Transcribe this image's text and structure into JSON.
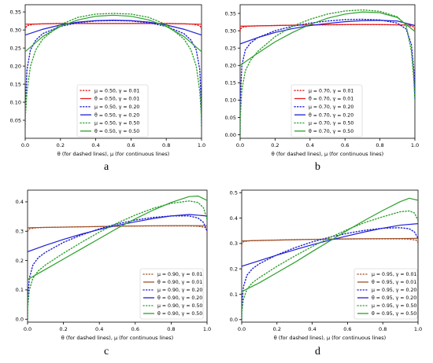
{
  "figure_labels": [
    "a",
    "b",
    "c",
    "d"
  ],
  "chart_data": [
    {
      "type": "line",
      "panel_label": "a",
      "xlabel": "θ (for dashed lines), μ (for continuous lines)",
      "ylabel": "",
      "xlim": [
        0,
        1
      ],
      "ylim": [
        0,
        0.37
      ],
      "xticks": [
        "0.0",
        "0.2",
        "0.4",
        "0.6",
        "0.8",
        "1.0"
      ],
      "yticks": [
        "0.05",
        "0.10",
        "0.15",
        "0.20",
        "0.25",
        "0.30",
        "0.35"
      ],
      "legend_position": "bottom-center",
      "series": [
        {
          "name": "μ = 0.50, γ = 0.01",
          "style": "dotted",
          "color": "#e41a1c",
          "x": [
            0,
            0.001,
            0.01,
            0.05,
            0.1,
            0.2,
            0.3,
            0.4,
            0.5,
            0.6,
            0.7,
            0.8,
            0.9,
            0.95,
            0.99,
            0.999,
            1
          ],
          "y": [
            0.3,
            0.305,
            0.312,
            0.316,
            0.317,
            0.318,
            0.318,
            0.318,
            0.318,
            0.318,
            0.318,
            0.318,
            0.317,
            0.316,
            0.312,
            0.305,
            0.3
          ]
        },
        {
          "name": "θ = 0.50, γ = 0.01",
          "style": "solid",
          "color": "#e41a1c",
          "x": [
            0,
            0.1,
            0.2,
            0.3,
            0.4,
            0.5,
            0.6,
            0.7,
            0.8,
            0.9,
            1
          ],
          "y": [
            0.316,
            0.317,
            0.318,
            0.318,
            0.318,
            0.318,
            0.318,
            0.318,
            0.318,
            0.317,
            0.316
          ]
        },
        {
          "name": "μ = 0.50, γ = 0.20",
          "style": "dotted",
          "color": "#1f1fd4",
          "x": [
            0,
            0.001,
            0.01,
            0.03,
            0.06,
            0.1,
            0.2,
            0.3,
            0.4,
            0.5,
            0.6,
            0.7,
            0.8,
            0.9,
            0.94,
            0.97,
            0.99,
            0.999,
            1
          ],
          "y": [
            0.03,
            0.09,
            0.19,
            0.245,
            0.272,
            0.29,
            0.31,
            0.32,
            0.325,
            0.326,
            0.325,
            0.32,
            0.31,
            0.29,
            0.272,
            0.245,
            0.19,
            0.09,
            0.03
          ]
        },
        {
          "name": "θ = 0.50, γ = 0.20",
          "style": "solid",
          "color": "#1f1fd4",
          "x": [
            0,
            0.1,
            0.2,
            0.3,
            0.4,
            0.5,
            0.6,
            0.7,
            0.8,
            0.9,
            1
          ],
          "y": [
            0.286,
            0.302,
            0.314,
            0.322,
            0.326,
            0.327,
            0.326,
            0.322,
            0.314,
            0.302,
            0.286
          ]
        },
        {
          "name": "μ = 0.50, γ = 0.50",
          "style": "dotted",
          "color": "#2ca02c",
          "x": [
            0,
            0.001,
            0.01,
            0.03,
            0.06,
            0.1,
            0.2,
            0.3,
            0.4,
            0.5,
            0.6,
            0.7,
            0.8,
            0.9,
            0.94,
            0.97,
            0.99,
            0.999,
            1
          ],
          "y": [
            0.03,
            0.06,
            0.13,
            0.2,
            0.245,
            0.275,
            0.315,
            0.335,
            0.344,
            0.346,
            0.344,
            0.335,
            0.315,
            0.275,
            0.245,
            0.2,
            0.13,
            0.06,
            0.03
          ]
        },
        {
          "name": "θ = 0.50, γ = 0.50",
          "style": "solid",
          "color": "#2ca02c",
          "x": [
            0,
            0.1,
            0.2,
            0.3,
            0.4,
            0.5,
            0.6,
            0.7,
            0.8,
            0.9,
            1
          ],
          "y": [
            0.24,
            0.282,
            0.31,
            0.328,
            0.338,
            0.341,
            0.338,
            0.328,
            0.31,
            0.282,
            0.24
          ]
        }
      ]
    },
    {
      "type": "line",
      "panel_label": "b",
      "xlabel": "θ (for dashed lines), μ (for continuous lines)",
      "ylabel": "",
      "xlim": [
        0,
        1
      ],
      "ylim": [
        -0.01,
        0.375
      ],
      "xticks": [
        "0.0",
        "0.2",
        "0.4",
        "0.6",
        "0.8",
        "1.0"
      ],
      "yticks": [
        "0.00",
        "0.05",
        "0.10",
        "0.15",
        "0.20",
        "0.25",
        "0.30",
        "0.35"
      ],
      "legend_position": "bottom-center",
      "series": [
        {
          "name": "μ = 0.70, γ = 0.01",
          "style": "dotted",
          "color": "#e41a1c",
          "x": [
            0,
            0.001,
            0.01,
            0.05,
            0.1,
            0.3,
            0.5,
            0.7,
            0.9,
            0.95,
            0.99,
            0.999,
            1
          ],
          "y": [
            0.298,
            0.304,
            0.31,
            0.313,
            0.314,
            0.316,
            0.317,
            0.318,
            0.317,
            0.316,
            0.312,
            0.305,
            0.3
          ]
        },
        {
          "name": "θ = 0.70, γ = 0.01",
          "style": "solid",
          "color": "#e41a1c",
          "x": [
            0,
            0.2,
            0.4,
            0.6,
            0.8,
            1
          ],
          "y": [
            0.313,
            0.315,
            0.317,
            0.318,
            0.318,
            0.316
          ]
        },
        {
          "name": "μ = 0.70, γ = 0.20",
          "style": "dotted",
          "color": "#1f1fd4",
          "x": [
            0,
            0.001,
            0.01,
            0.03,
            0.06,
            0.1,
            0.2,
            0.3,
            0.4,
            0.5,
            0.6,
            0.7,
            0.8,
            0.9,
            0.95,
            0.98,
            0.995,
            1
          ],
          "y": [
            0.0,
            0.1,
            0.2,
            0.245,
            0.265,
            0.28,
            0.3,
            0.313,
            0.322,
            0.328,
            0.332,
            0.333,
            0.331,
            0.322,
            0.305,
            0.26,
            0.18,
            0.1
          ]
        },
        {
          "name": "θ = 0.70, γ = 0.20",
          "style": "solid",
          "color": "#1f1fd4",
          "x": [
            0,
            0.1,
            0.2,
            0.3,
            0.4,
            0.5,
            0.6,
            0.7,
            0.8,
            0.9,
            1
          ],
          "y": [
            0.262,
            0.28,
            0.295,
            0.306,
            0.315,
            0.321,
            0.326,
            0.329,
            0.33,
            0.328,
            0.315
          ]
        },
        {
          "name": "μ = 0.70, γ = 0.50",
          "style": "dotted",
          "color": "#2ca02c",
          "x": [
            0,
            0.001,
            0.01,
            0.03,
            0.06,
            0.1,
            0.2,
            0.3,
            0.4,
            0.5,
            0.6,
            0.7,
            0.8,
            0.9,
            0.95,
            0.98,
            0.995,
            1
          ],
          "y": [
            0.0,
            0.05,
            0.13,
            0.185,
            0.215,
            0.24,
            0.283,
            0.313,
            0.333,
            0.348,
            0.357,
            0.36,
            0.356,
            0.34,
            0.315,
            0.24,
            0.15,
            0.1
          ]
        },
        {
          "name": "θ = 0.70, γ = 0.50",
          "style": "solid",
          "color": "#2ca02c",
          "x": [
            0,
            0.1,
            0.2,
            0.3,
            0.4,
            0.5,
            0.6,
            0.7,
            0.8,
            0.9,
            1
          ],
          "y": [
            0.2,
            0.235,
            0.268,
            0.295,
            0.318,
            0.336,
            0.348,
            0.354,
            0.352,
            0.338,
            0.298
          ]
        }
      ]
    },
    {
      "type": "line",
      "panel_label": "c",
      "xlabel": "θ (for dashed lines), μ (for continuous lines)",
      "ylabel": "",
      "xlim": [
        0,
        1
      ],
      "ylim": [
        -0.01,
        0.44
      ],
      "xticks": [
        "0.0",
        "0.2",
        "0.4",
        "0.6",
        "0.8",
        "1.0"
      ],
      "yticks": [
        "0.0",
        "0.1",
        "0.2",
        "0.3",
        "0.4"
      ],
      "legend_position": "bottom-right",
      "series": [
        {
          "name": "μ = 0.90, γ = 0.01",
          "style": "dotted",
          "color": "#a0522d",
          "x": [
            0,
            0.001,
            0.01,
            0.05,
            0.1,
            0.3,
            0.5,
            0.7,
            0.9,
            0.95,
            0.99,
            0.999,
            1
          ],
          "y": [
            0.29,
            0.3,
            0.308,
            0.312,
            0.313,
            0.315,
            0.317,
            0.318,
            0.318,
            0.317,
            0.313,
            0.305,
            0.295
          ]
        },
        {
          "name": "θ = 0.90, γ = 0.01",
          "style": "solid",
          "color": "#a0522d",
          "x": [
            0,
            0.2,
            0.4,
            0.6,
            0.8,
            1
          ],
          "y": [
            0.312,
            0.314,
            0.316,
            0.318,
            0.319,
            0.319
          ]
        },
        {
          "name": "μ = 0.90, γ = 0.20",
          "style": "dotted",
          "color": "#1f1fd4",
          "x": [
            0,
            0.001,
            0.01,
            0.03,
            0.06,
            0.1,
            0.2,
            0.3,
            0.4,
            0.5,
            0.6,
            0.7,
            0.8,
            0.9,
            0.95,
            0.98,
            1
          ],
          "y": [
            0.0,
            0.07,
            0.14,
            0.185,
            0.21,
            0.228,
            0.262,
            0.287,
            0.308,
            0.325,
            0.338,
            0.347,
            0.352,
            0.352,
            0.345,
            0.33,
            0.3
          ]
        },
        {
          "name": "θ = 0.90, γ = 0.20",
          "style": "solid",
          "color": "#1f1fd4",
          "x": [
            0,
            0.1,
            0.2,
            0.3,
            0.4,
            0.5,
            0.6,
            0.7,
            0.8,
            0.9,
            1
          ],
          "y": [
            0.23,
            0.252,
            0.272,
            0.29,
            0.306,
            0.32,
            0.332,
            0.343,
            0.352,
            0.357,
            0.352
          ]
        },
        {
          "name": "μ = 0.90, γ = 0.50",
          "style": "dotted",
          "color": "#2ca02c",
          "x": [
            0,
            0.001,
            0.01,
            0.03,
            0.06,
            0.1,
            0.2,
            0.3,
            0.4,
            0.5,
            0.6,
            0.7,
            0.8,
            0.9,
            0.95,
            0.98,
            1
          ],
          "y": [
            0.0,
            0.04,
            0.1,
            0.14,
            0.165,
            0.185,
            0.225,
            0.262,
            0.297,
            0.328,
            0.355,
            0.378,
            0.395,
            0.403,
            0.398,
            0.38,
            0.34
          ]
        },
        {
          "name": "θ = 0.90, γ = 0.50",
          "style": "solid",
          "color": "#2ca02c",
          "x": [
            0,
            0.1,
            0.2,
            0.3,
            0.4,
            0.5,
            0.6,
            0.7,
            0.8,
            0.9,
            0.95,
            1
          ],
          "y": [
            0.135,
            0.17,
            0.205,
            0.24,
            0.275,
            0.31,
            0.342,
            0.372,
            0.398,
            0.418,
            0.42,
            0.405
          ]
        }
      ]
    },
    {
      "type": "line",
      "panel_label": "d",
      "xlabel": "θ (for dashed lines), μ (for continuous lines)",
      "ylabel": "",
      "xlim": [
        0,
        1
      ],
      "ylim": [
        -0.01,
        0.51
      ],
      "xticks": [
        "0.0",
        "0.2",
        "0.4",
        "0.6",
        "0.8",
        "1.0"
      ],
      "yticks": [
        "0.0",
        "0.1",
        "0.2",
        "0.3",
        "0.4",
        "0.5"
      ],
      "legend_position": "bottom-right",
      "series": [
        {
          "name": "μ = 0.95, γ = 0.01",
          "style": "dotted",
          "color": "#a0522d",
          "x": [
            0,
            0.001,
            0.01,
            0.05,
            0.1,
            0.3,
            0.5,
            0.7,
            0.9,
            0.95,
            0.99,
            0.999,
            1
          ],
          "y": [
            0.285,
            0.298,
            0.307,
            0.311,
            0.312,
            0.315,
            0.317,
            0.318,
            0.318,
            0.317,
            0.313,
            0.305,
            0.295
          ]
        },
        {
          "name": "θ = 0.95, γ = 0.01",
          "style": "solid",
          "color": "#a0522d",
          "x": [
            0,
            0.2,
            0.4,
            0.6,
            0.8,
            1
          ],
          "y": [
            0.31,
            0.313,
            0.316,
            0.318,
            0.319,
            0.32
          ]
        },
        {
          "name": "μ = 0.95, γ = 0.20",
          "style": "dotted",
          "color": "#1f1fd4",
          "x": [
            0,
            0.001,
            0.01,
            0.03,
            0.06,
            0.1,
            0.2,
            0.3,
            0.4,
            0.5,
            0.6,
            0.7,
            0.8,
            0.9,
            0.95,
            0.98,
            1
          ],
          "y": [
            0.0,
            0.06,
            0.13,
            0.175,
            0.2,
            0.22,
            0.255,
            0.283,
            0.306,
            0.325,
            0.34,
            0.352,
            0.36,
            0.362,
            0.358,
            0.345,
            0.32
          ]
        },
        {
          "name": "θ = 0.95, γ = 0.20",
          "style": "solid",
          "color": "#1f1fd4",
          "x": [
            0,
            0.1,
            0.2,
            0.3,
            0.4,
            0.5,
            0.6,
            0.7,
            0.8,
            0.9,
            1
          ],
          "y": [
            0.21,
            0.232,
            0.254,
            0.275,
            0.295,
            0.313,
            0.33,
            0.346,
            0.36,
            0.372,
            0.378
          ]
        },
        {
          "name": "μ = 0.95, γ = 0.50",
          "style": "dotted",
          "color": "#2ca02c",
          "x": [
            0,
            0.001,
            0.01,
            0.03,
            0.06,
            0.1,
            0.2,
            0.3,
            0.4,
            0.5,
            0.6,
            0.7,
            0.8,
            0.9,
            0.95,
            0.98,
            1
          ],
          "y": [
            0.0,
            0.03,
            0.08,
            0.12,
            0.145,
            0.165,
            0.21,
            0.25,
            0.288,
            0.323,
            0.355,
            0.383,
            0.405,
            0.425,
            0.428,
            0.42,
            0.39
          ]
        },
        {
          "name": "θ = 0.95, γ = 0.50",
          "style": "solid",
          "color": "#2ca02c",
          "x": [
            0,
            0.1,
            0.2,
            0.3,
            0.4,
            0.5,
            0.6,
            0.7,
            0.8,
            0.9,
            0.95,
            1
          ],
          "y": [
            0.11,
            0.145,
            0.185,
            0.225,
            0.268,
            0.31,
            0.352,
            0.392,
            0.43,
            0.465,
            0.478,
            0.47
          ]
        }
      ]
    }
  ]
}
